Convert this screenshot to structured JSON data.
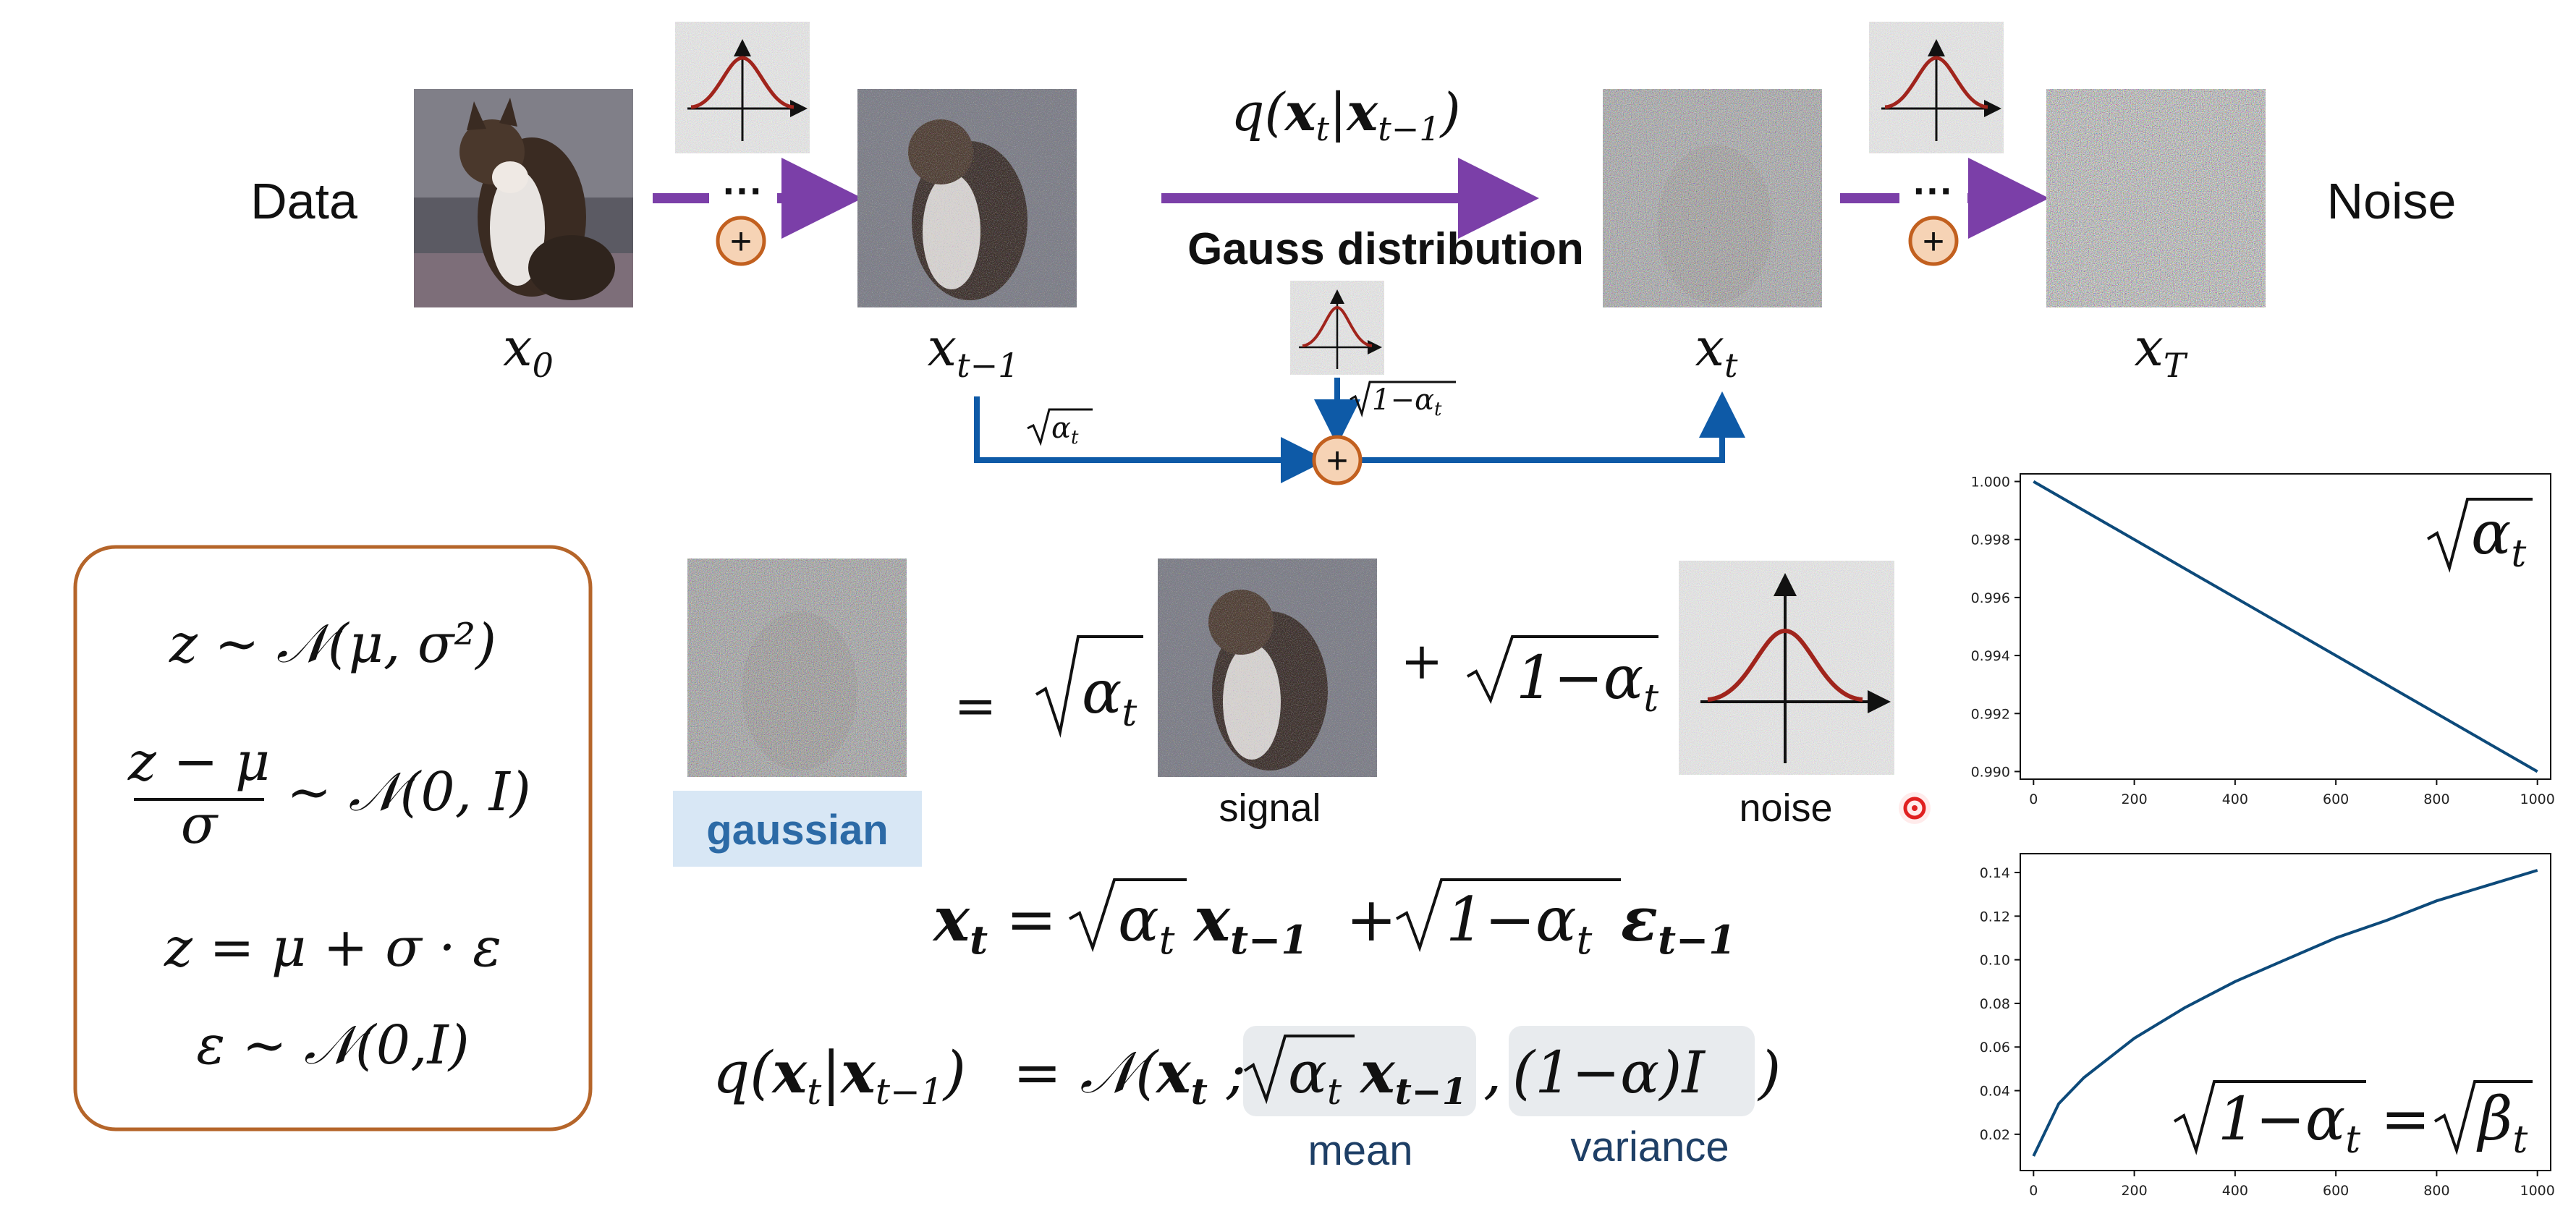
{
  "top": {
    "data_label": "Data",
    "noise_label": "Noise",
    "x0": "x",
    "x0_sub": "0",
    "xt1": "x",
    "xt1_sub": "t−1",
    "xt": "x",
    "xt_sub": "t",
    "xT": "x",
    "xT_sub": "T",
    "dots": "···",
    "plus": "+",
    "q_label": "q(x|x)",
    "q_x": "x",
    "q_sub_t": "t",
    "q_sub_t1": "t−1",
    "gauss_label": "Gauss distribution",
    "sqrt_alpha": "α",
    "sqrt_alpha_sub": "t",
    "sqrt_one_minus": "1−α",
    "sqrt_one_minus_sub": "t"
  },
  "box": {
    "line1": "z ~ 𝒩(μ,  σ²)",
    "line2_num": "z − μ",
    "line2_den": "σ",
    "line2_rhs": "~ 𝒩(0,  I)",
    "line3": "z = μ + σ · ε",
    "line4": "ε ~ 𝒩(0,I)"
  },
  "middle": {
    "equals": "=",
    "plus": "+",
    "sqrt_alpha": "α",
    "sqrt_alpha_sub": "t",
    "sqrt_one_minus": "1−α",
    "sqrt_one_minus_sub": "t",
    "gaussian_label": "gaussian",
    "signal_label": "signal",
    "noise_label": "noise"
  },
  "formula1": {
    "lhs": "x",
    "lhs_sub": "t",
    "eq": "=",
    "a": "α",
    "a_sub": "t",
    "x2": "x",
    "x2_sub": "t−1",
    "plus": "+",
    "b": "1−α",
    "b_sub": "t",
    "eps": "ε",
    "eps_sub": "t−1"
  },
  "formula2": {
    "lhs": "q(x|x)",
    "eq": "= 𝒩(",
    "x": "x",
    "x_sub": "t",
    "semicolon": ";",
    "mean_expr_a": "α",
    "mean_expr_sub": "t",
    "mean_x": "x",
    "mean_x_sub": "t−1",
    "comma": ",",
    "var_expr": "(1−α)I",
    "close": ")",
    "mean_label": "mean",
    "variance_label": "variance"
  },
  "chart_data": [
    {
      "type": "line",
      "title": "",
      "annotation": "√αₜ",
      "x": [
        0,
        1000
      ],
      "series": [
        {
          "values": [
            1.0,
            0.99
          ]
        }
      ],
      "xlim": [
        0,
        1000
      ],
      "ylim": [
        0.99,
        1.0
      ],
      "xticks": [
        "0",
        "200",
        "400",
        "600",
        "800",
        "1000"
      ],
      "yticks": [
        "1.000",
        "0.998",
        "0.996",
        "0.994",
        "0.992",
        "0.990"
      ],
      "color": "#0d4a7a",
      "grid": false
    },
    {
      "type": "line",
      "title": "",
      "annotation": "√(1−αₜ) = √βₜ",
      "x": [
        0,
        50,
        100,
        200,
        300,
        400,
        500,
        600,
        700,
        800,
        900,
        1000
      ],
      "series": [
        {
          "values": [
            0.01,
            0.034,
            0.046,
            0.064,
            0.078,
            0.09,
            0.1,
            0.11,
            0.118,
            0.127,
            0.134,
            0.141
          ]
        }
      ],
      "xlim": [
        0,
        1000
      ],
      "ylim": [
        0.007,
        0.145
      ],
      "xticks": [
        "0",
        "200",
        "400",
        "600",
        "800",
        "1000"
      ],
      "yticks": [
        "0.14",
        "0.12",
        "0.10",
        "0.08",
        "0.06",
        "0.04",
        "0.02"
      ],
      "color": "#0d4a7a",
      "grid": false
    }
  ],
  "colors": {
    "purple_arrow": "#7b3fa8",
    "blue_arrow": "#0e5aa7",
    "plus_fill": "#f6d3b5",
    "plus_stroke": "#c2601f",
    "box_border": "#b5652a",
    "gaussian_bg": "#d8e7f5",
    "gaussian_text": "#2c6aa6",
    "mean_bg": "#e8ebee",
    "dark_blue_text": "#1e3f66",
    "bell": "#a0241c",
    "cursor": "#e02020"
  }
}
